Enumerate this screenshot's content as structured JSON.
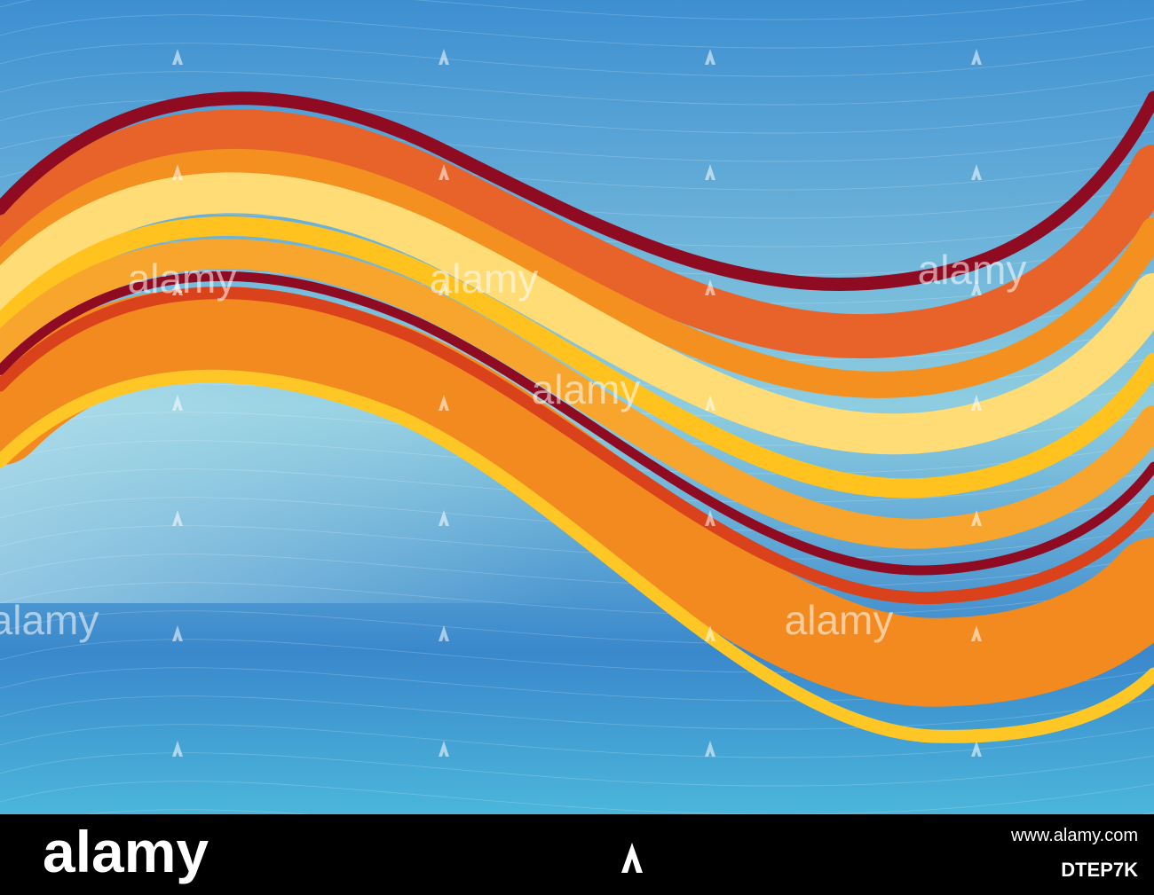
{
  "watermarks": [
    "alamy",
    "alamy",
    "alamy",
    "alamy",
    "alamy",
    "alamy"
  ],
  "footer": {
    "brand": "alamy",
    "image_id": "DTEP7K",
    "url": "www.alamy.com"
  }
}
